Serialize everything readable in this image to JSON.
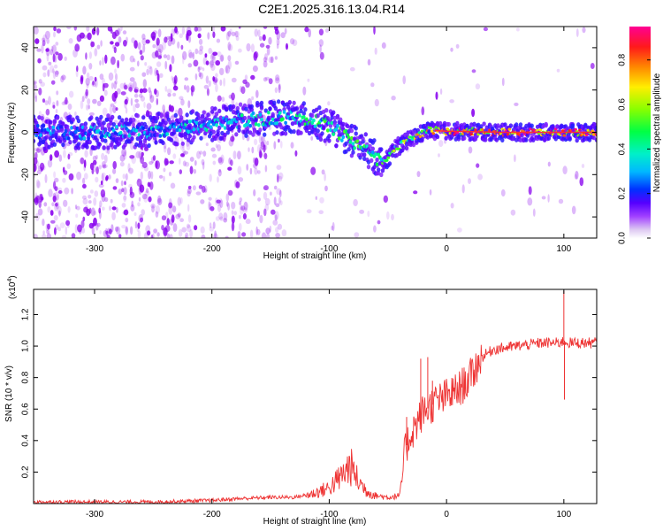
{
  "figure_title": "C2E1.2025.316.13.04.R14",
  "colors": {
    "snr_line": "#ee3333",
    "ridge_core": "#ff2a3a",
    "noise": "#8800ee"
  },
  "chart_data": [
    {
      "type": "heatmap",
      "title": "C2E1.2025.316.13.04.R14",
      "xlabel": "Height of straight line (km)",
      "ylabel": "Frequency (Hz)",
      "xlim": [
        -352,
        128
      ],
      "ylim": [
        -50,
        50
      ],
      "x_ticks": [
        -300,
        -200,
        -100,
        0,
        100
      ],
      "x_tick_labels": [
        "-300",
        "-200",
        "-100",
        "0",
        "100"
      ],
      "y_ticks": [
        -40,
        -20,
        0,
        20,
        40
      ],
      "y_tick_labels": [
        "-40",
        "-20",
        "0",
        "20",
        "40"
      ],
      "ridge_frequency": {
        "x": [
          -352,
          -300,
          -250,
          -220,
          -200,
          -170,
          -140,
          -120,
          -100,
          -80,
          -60,
          -53,
          -45,
          -30,
          -15,
          0,
          50,
          128
        ],
        "y": [
          0,
          0,
          1,
          2,
          4,
          6,
          7,
          6,
          3,
          -4,
          -12,
          -15,
          -8,
          -3,
          1,
          0.5,
          0,
          0
        ]
      },
      "ridge_amplitude": {
        "x": [
          -352,
          -300,
          -220,
          -150,
          -110,
          -80,
          -60,
          -45,
          -30,
          -10,
          0,
          50,
          128
        ],
        "y": [
          0.3,
          0.35,
          0.4,
          0.45,
          0.5,
          0.55,
          0.5,
          0.6,
          0.7,
          0.8,
          0.9,
          0.95,
          0.95
        ]
      },
      "colorbar": {
        "label": "Normalized spectral amplitude",
        "range": [
          0,
          0.95
        ],
        "ticks": [
          0.0,
          0.2,
          0.4,
          0.6,
          0.8
        ],
        "tick_labels": [
          "0.0",
          "0.2",
          "0.4",
          "0.6",
          "0.8"
        ],
        "stops": [
          {
            "v": 0.0,
            "color": "#ffffff"
          },
          {
            "v": 0.04,
            "color": "#ddc8f2"
          },
          {
            "v": 0.1,
            "color": "#a040ff"
          },
          {
            "v": 0.16,
            "color": "#5500ff"
          },
          {
            "v": 0.22,
            "color": "#0030ff"
          },
          {
            "v": 0.3,
            "color": "#00b8ff"
          },
          {
            "v": 0.38,
            "color": "#00f0c8"
          },
          {
            "v": 0.48,
            "color": "#00ff44"
          },
          {
            "v": 0.58,
            "color": "#88ff00"
          },
          {
            "v": 0.68,
            "color": "#ffee00"
          },
          {
            "v": 0.77,
            "color": "#ff8800"
          },
          {
            "v": 0.86,
            "color": "#ff1a1a"
          },
          {
            "v": 0.95,
            "color": "#ff0090"
          }
        ]
      }
    },
    {
      "type": "line",
      "xlabel": "Height of straight line (km)",
      "ylabel": "SNR (10 * v/v)",
      "exponent_label": "(x10",
      "exponent_power": "4",
      "xlim": [
        -352,
        128
      ],
      "ylim": [
        0,
        1.36
      ],
      "x_ticks": [
        -300,
        -200,
        -100,
        0,
        100
      ],
      "x_tick_labels": [
        "-300",
        "-200",
        "-100",
        "0",
        "100"
      ],
      "y_ticks": [
        0.2,
        0.4,
        0.6,
        0.8,
        1.0,
        1.2
      ],
      "y_tick_labels": [
        "0.2",
        "0.4",
        "0.6",
        "0.8",
        "1.0",
        "1.2"
      ],
      "series": [
        {
          "name": "SNR",
          "x": [
            -352,
            -300,
            -250,
            -200,
            -180,
            -150,
            -130,
            -115,
            -100,
            -90,
            -82,
            -75,
            -68,
            -60,
            -50,
            -40,
            -35,
            -30,
            -20,
            -10,
            0,
            10,
            20,
            30,
            40,
            60,
            80,
            95,
            100,
            105,
            115,
            125,
            128
          ],
          "y": [
            0.01,
            0.01,
            0.01,
            0.02,
            0.03,
            0.04,
            0.04,
            0.06,
            0.1,
            0.17,
            0.24,
            0.14,
            0.08,
            0.05,
            0.04,
            0.05,
            0.35,
            0.45,
            0.58,
            0.64,
            0.68,
            0.72,
            0.8,
            0.93,
            0.98,
            1.0,
            1.02,
            1.02,
            1.03,
            1.02,
            1.02,
            1.02,
            1.03
          ]
        }
      ],
      "spikes": [
        {
          "x": -34,
          "y": 0.55
        },
        {
          "x": -22,
          "y": 0.92
        },
        {
          "x": -16,
          "y": 0.93
        },
        {
          "x": -12,
          "y": 0.78
        },
        {
          "x": 100,
          "y": 1.35
        },
        {
          "x": 100.5,
          "y": 0.66
        }
      ]
    }
  ]
}
